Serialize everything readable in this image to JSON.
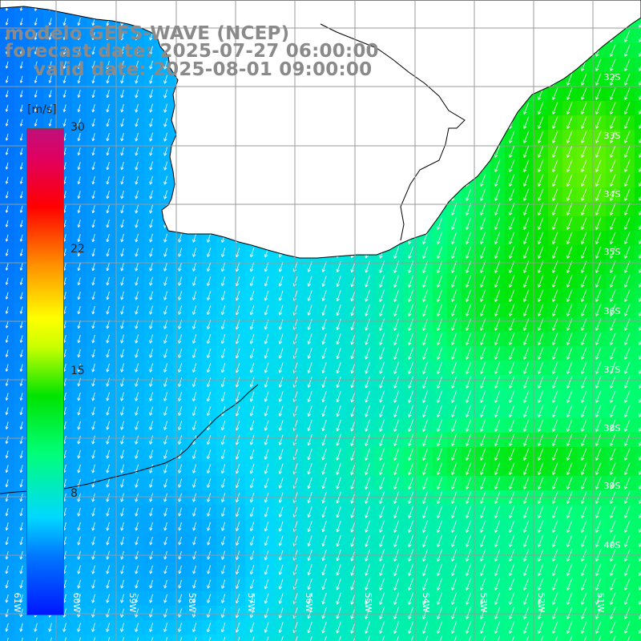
{
  "header": {
    "model": "modelo GEFS-WAVE (NCEP)",
    "forecast": "forecast date: 2025-07-27 06:00:00",
    "valid": "valid date: 2025-08-01 09:00:00"
  },
  "colorbar": {
    "unit": "[m/s]",
    "ticks": [
      "30",
      "22",
      "15",
      "8"
    ],
    "range": [
      0,
      30
    ],
    "colors": [
      "#0016ff",
      "#00d8ff",
      "#00e400",
      "#ffff00",
      "#ff0000",
      "#c0107a"
    ]
  },
  "map": {
    "variable": "wind speed",
    "arrows": "wind direction vectors",
    "land_color": "#ffffff",
    "coastline_color": "#000000",
    "grid_color": "#9a9a9a",
    "lat_labels": [
      "32S",
      "33S",
      "34S",
      "35S",
      "36S",
      "37S",
      "38S",
      "39S",
      "40S"
    ],
    "lon_labels": [
      "61W",
      "60W",
      "59W",
      "58W",
      "57W",
      "56W",
      "55W",
      "54W",
      "53W",
      "52W",
      "51W"
    ]
  }
}
